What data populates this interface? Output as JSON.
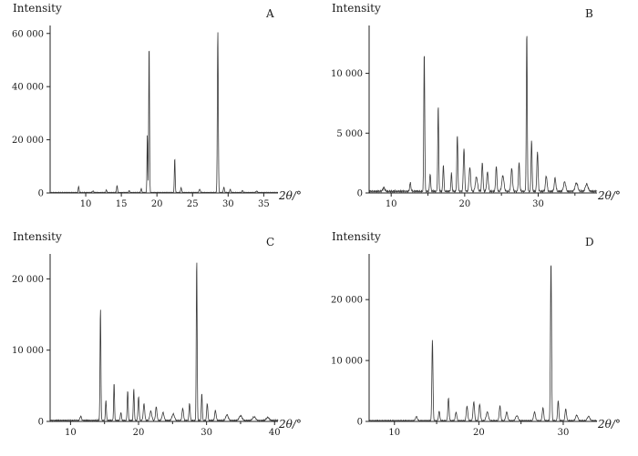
{
  "page": {
    "background": "#ffffff",
    "axis_color": "#222222",
    "line_color": "#3a3a3a"
  },
  "chart_data": [
    {
      "id": "A",
      "type": "line",
      "title": "A",
      "ylabel": "Intensity",
      "xlabel": "2θ/°",
      "xlim": [
        5,
        37
      ],
      "ylim": [
        0,
        63000
      ],
      "xticks": [
        10,
        15,
        20,
        25,
        30,
        35
      ],
      "xminor": [],
      "yticks": [
        0,
        20000,
        40000,
        60000
      ],
      "ytick_labels": [
        "0",
        "20 000",
        "40 000",
        "60 000"
      ],
      "baseline": 350,
      "peaks": [
        [
          9.0,
          2200,
          0.09
        ],
        [
          11.0,
          500,
          0.15
        ],
        [
          12.9,
          900,
          0.1
        ],
        [
          14.4,
          2600,
          0.09
        ],
        [
          16.1,
          700,
          0.1
        ],
        [
          17.8,
          1500,
          0.09
        ],
        [
          18.65,
          22000,
          0.07
        ],
        [
          18.9,
          56500,
          0.08
        ],
        [
          22.5,
          13000,
          0.08
        ],
        [
          23.4,
          1800,
          0.1
        ],
        [
          26.0,
          1200,
          0.12
        ],
        [
          28.55,
          61000,
          0.09
        ],
        [
          29.4,
          2000,
          0.1
        ],
        [
          30.3,
          1200,
          0.1
        ],
        [
          32.0,
          700,
          0.12
        ],
        [
          34.0,
          500,
          0.15
        ]
      ]
    },
    {
      "id": "B",
      "type": "line",
      "title": "B",
      "ylabel": "Intensity",
      "xlabel": "2θ/°",
      "xlim": [
        7,
        38
      ],
      "ylim": [
        0,
        14000
      ],
      "xticks": [
        10,
        20,
        30
      ],
      "xminor": [
        15,
        25,
        35
      ],
      "yticks": [
        0,
        5000,
        10000
      ],
      "ytick_labels": [
        "0",
        "5 000",
        "10 000"
      ],
      "baseline": 250,
      "peaks": [
        [
          9.0,
          300,
          0.2
        ],
        [
          12.6,
          700,
          0.12
        ],
        [
          14.5,
          11800,
          0.09
        ],
        [
          15.3,
          1500,
          0.1
        ],
        [
          16.4,
          7200,
          0.09
        ],
        [
          17.1,
          2200,
          0.1
        ],
        [
          18.2,
          1500,
          0.1
        ],
        [
          19.0,
          4700,
          0.1
        ],
        [
          19.9,
          3600,
          0.12
        ],
        [
          20.7,
          2000,
          0.15
        ],
        [
          21.6,
          1200,
          0.2
        ],
        [
          22.4,
          2400,
          0.12
        ],
        [
          23.1,
          1600,
          0.15
        ],
        [
          24.3,
          2100,
          0.12
        ],
        [
          25.2,
          1300,
          0.2
        ],
        [
          26.4,
          1900,
          0.15
        ],
        [
          27.4,
          2400,
          0.12
        ],
        [
          28.45,
          13400,
          0.09
        ],
        [
          29.1,
          4300,
          0.1
        ],
        [
          29.9,
          3300,
          0.12
        ],
        [
          31.1,
          1300,
          0.15
        ],
        [
          32.3,
          1100,
          0.15
        ],
        [
          33.6,
          800,
          0.2
        ],
        [
          35.2,
          700,
          0.25
        ],
        [
          36.6,
          600,
          0.25
        ]
      ]
    },
    {
      "id": "C",
      "type": "line",
      "title": "C",
      "ylabel": "Intensity",
      "xlabel": "2θ/°",
      "xlim": [
        7,
        40.5
      ],
      "ylim": [
        0,
        23500
      ],
      "xticks": [
        10,
        20,
        30,
        40
      ],
      "xminor": [
        15,
        25,
        35
      ],
      "yticks": [
        0,
        10000,
        20000
      ],
      "ytick_labels": [
        "0",
        "10 000",
        "20 000"
      ],
      "baseline": 250,
      "peaks": [
        [
          11.5,
          600,
          0.15
        ],
        [
          14.4,
          15800,
          0.09
        ],
        [
          15.2,
          2800,
          0.1
        ],
        [
          16.4,
          5300,
          0.09
        ],
        [
          17.4,
          1100,
          0.12
        ],
        [
          18.4,
          4200,
          0.1
        ],
        [
          19.3,
          4400,
          0.1
        ],
        [
          20.0,
          3300,
          0.12
        ],
        [
          20.8,
          2300,
          0.15
        ],
        [
          21.8,
          1300,
          0.2
        ],
        [
          22.6,
          1900,
          0.15
        ],
        [
          23.6,
          1100,
          0.2
        ],
        [
          25.1,
          900,
          0.25
        ],
        [
          26.5,
          1700,
          0.15
        ],
        [
          27.5,
          2400,
          0.12
        ],
        [
          28.55,
          22800,
          0.09
        ],
        [
          29.3,
          3800,
          0.1
        ],
        [
          30.1,
          2400,
          0.12
        ],
        [
          31.3,
          1400,
          0.15
        ],
        [
          33.0,
          800,
          0.25
        ],
        [
          35.0,
          650,
          0.3
        ],
        [
          37.0,
          500,
          0.3
        ],
        [
          39.0,
          420,
          0.3
        ]
      ]
    },
    {
      "id": "D",
      "type": "line",
      "title": "D",
      "ylabel": "Intensity",
      "xlabel": "2θ/°",
      "xlim": [
        7,
        34
      ],
      "ylim": [
        0,
        27500
      ],
      "xticks": [
        10,
        20,
        30
      ],
      "xminor": [
        15,
        25
      ],
      "yticks": [
        0,
        10000,
        20000
      ],
      "ytick_labels": [
        "0",
        "10 000",
        "20 000"
      ],
      "baseline": 250,
      "peaks": [
        [
          12.6,
          650,
          0.15
        ],
        [
          14.5,
          13300,
          0.09
        ],
        [
          15.3,
          1600,
          0.1
        ],
        [
          16.4,
          3700,
          0.1
        ],
        [
          17.3,
          1400,
          0.12
        ],
        [
          18.6,
          2400,
          0.12
        ],
        [
          19.4,
          3100,
          0.12
        ],
        [
          20.1,
          2700,
          0.12
        ],
        [
          21.0,
          1400,
          0.18
        ],
        [
          22.5,
          2400,
          0.12
        ],
        [
          23.3,
          1400,
          0.15
        ],
        [
          24.5,
          800,
          0.2
        ],
        [
          26.6,
          1400,
          0.15
        ],
        [
          27.6,
          2100,
          0.12
        ],
        [
          28.55,
          26300,
          0.09
        ],
        [
          29.4,
          3300,
          0.1
        ],
        [
          30.3,
          1900,
          0.12
        ],
        [
          31.6,
          900,
          0.18
        ],
        [
          33.0,
          700,
          0.2
        ]
      ]
    }
  ]
}
